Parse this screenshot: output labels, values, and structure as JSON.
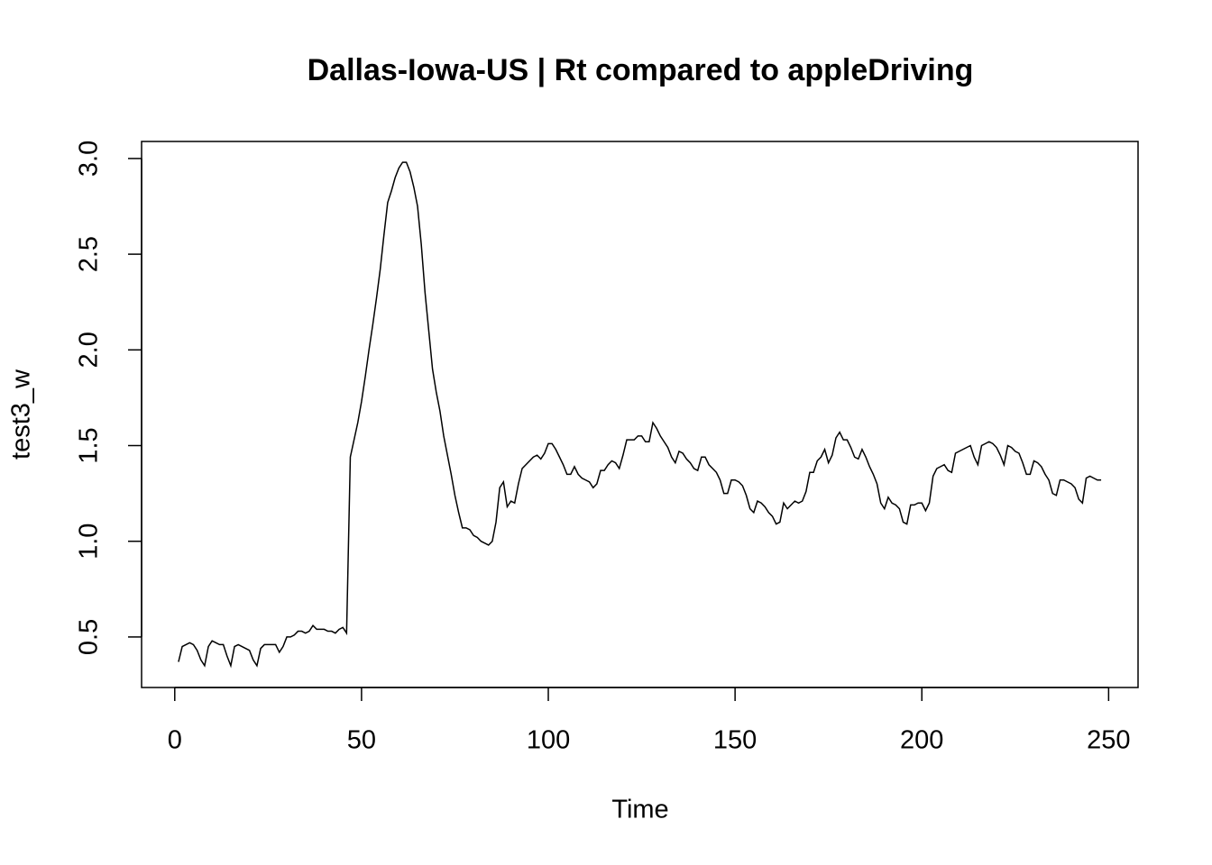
{
  "chart_data": {
    "type": "line",
    "title": "Dallas-Iowa-US | Rt compared to appleDriving",
    "x_label": "Time",
    "y_label": "test3_w",
    "x": [
      1,
      2,
      3,
      4,
      5,
      6,
      7,
      8,
      9,
      10,
      11,
      12,
      13,
      14,
      15,
      16,
      17,
      18,
      19,
      20,
      21,
      22,
      23,
      24,
      25,
      26,
      27,
      28,
      29,
      30,
      31,
      32,
      33,
      34,
      35,
      36,
      37,
      38,
      39,
      40,
      41,
      42,
      43,
      44,
      45,
      46,
      47,
      48,
      49,
      50,
      51,
      52,
      53,
      54,
      55,
      56,
      57,
      58,
      59,
      60,
      61,
      62,
      63,
      64,
      65,
      66,
      67,
      68,
      69,
      70,
      71,
      72,
      73,
      74,
      75,
      76,
      77,
      78,
      79,
      80,
      81,
      82,
      83,
      84,
      85,
      86,
      87,
      88,
      89,
      90,
      91,
      92,
      93,
      94,
      95,
      96,
      97,
      98,
      99,
      100,
      101,
      102,
      103,
      104,
      105,
      106,
      107,
      108,
      109,
      110,
      111,
      112,
      113,
      114,
      115,
      116,
      117,
      118,
      119,
      120,
      121,
      122,
      123,
      124,
      125,
      126,
      127,
      128,
      129,
      130,
      131,
      132,
      133,
      134,
      135,
      136,
      137,
      138,
      139,
      140,
      141,
      142,
      143,
      144,
      145,
      146,
      147,
      148,
      149,
      150,
      151,
      152,
      153,
      154,
      155,
      156,
      157,
      158,
      159,
      160,
      161,
      162,
      163,
      164,
      165,
      166,
      167,
      168,
      169,
      170,
      171,
      172,
      173,
      174,
      175,
      176,
      177,
      178,
      179,
      180,
      181,
      182,
      183,
      184,
      185,
      186,
      187,
      188,
      189,
      190,
      191,
      192,
      193,
      194,
      195,
      196,
      197,
      198,
      199,
      200,
      201,
      202,
      203,
      204,
      205,
      206,
      207,
      208,
      209,
      210,
      211,
      212,
      213,
      214,
      215,
      216,
      217,
      218,
      219,
      220,
      221,
      222,
      223,
      224,
      225,
      226,
      227,
      228,
      229,
      230,
      231,
      232,
      233,
      234,
      235,
      236,
      237,
      238,
      239,
      240,
      241,
      242,
      243,
      244,
      245,
      246,
      247,
      248
    ],
    "series": [
      {
        "color": "#000000",
        "values": [
          0.37,
          0.45,
          0.46,
          0.47,
          0.46,
          0.43,
          0.38,
          0.35,
          0.45,
          0.48,
          0.47,
          0.46,
          0.46,
          0.4,
          0.35,
          0.45,
          0.46,
          0.45,
          0.44,
          0.43,
          0.38,
          0.35,
          0.44,
          0.46,
          0.46,
          0.46,
          0.46,
          0.42,
          0.45,
          0.5,
          0.5,
          0.51,
          0.53,
          0.53,
          0.52,
          0.53,
          0.56,
          0.54,
          0.54,
          0.54,
          0.53,
          0.53,
          0.52,
          0.54,
          0.55,
          0.52,
          1.44,
          1.53,
          1.62,
          1.73,
          1.86,
          2.0,
          2.13,
          2.27,
          2.42,
          2.6,
          2.77,
          2.83,
          2.9,
          2.95,
          2.98,
          2.98,
          2.93,
          2.85,
          2.75,
          2.55,
          2.3,
          2.1,
          1.9,
          1.78,
          1.68,
          1.55,
          1.45,
          1.35,
          1.24,
          1.15,
          1.07,
          1.07,
          1.06,
          1.03,
          1.02,
          1.0,
          0.99,
          0.98,
          1.0,
          1.1,
          1.28,
          1.31,
          1.18,
          1.21,
          1.2,
          1.3,
          1.38,
          1.4,
          1.42,
          1.44,
          1.45,
          1.43,
          1.46,
          1.51,
          1.51,
          1.48,
          1.44,
          1.4,
          1.35,
          1.35,
          1.39,
          1.35,
          1.33,
          1.32,
          1.31,
          1.28,
          1.3,
          1.37,
          1.37,
          1.4,
          1.42,
          1.41,
          1.38,
          1.45,
          1.53,
          1.53,
          1.53,
          1.55,
          1.55,
          1.52,
          1.52,
          1.62,
          1.59,
          1.55,
          1.52,
          1.49,
          1.44,
          1.41,
          1.47,
          1.46,
          1.43,
          1.41,
          1.38,
          1.37,
          1.44,
          1.44,
          1.4,
          1.38,
          1.36,
          1.32,
          1.25,
          1.25,
          1.32,
          1.32,
          1.31,
          1.29,
          1.24,
          1.17,
          1.15,
          1.21,
          1.2,
          1.18,
          1.15,
          1.13,
          1.09,
          1.1,
          1.2,
          1.17,
          1.19,
          1.21,
          1.2,
          1.21,
          1.26,
          1.36,
          1.36,
          1.42,
          1.44,
          1.48,
          1.41,
          1.45,
          1.54,
          1.57,
          1.53,
          1.53,
          1.49,
          1.44,
          1.43,
          1.48,
          1.44,
          1.39,
          1.35,
          1.3,
          1.2,
          1.17,
          1.23,
          1.2,
          1.19,
          1.17,
          1.1,
          1.09,
          1.19,
          1.19,
          1.2,
          1.2,
          1.16,
          1.2,
          1.34,
          1.38,
          1.39,
          1.4,
          1.37,
          1.36,
          1.46,
          1.47,
          1.48,
          1.49,
          1.5,
          1.44,
          1.4,
          1.5,
          1.51,
          1.52,
          1.51,
          1.49,
          1.45,
          1.4,
          1.5,
          1.49,
          1.47,
          1.46,
          1.41,
          1.35,
          1.35,
          1.42,
          1.41,
          1.39,
          1.35,
          1.32,
          1.25,
          1.24,
          1.32,
          1.32,
          1.31,
          1.3,
          1.28,
          1.22,
          1.2,
          1.33,
          1.34,
          1.33,
          1.32,
          1.32
        ]
      }
    ],
    "xlim": [
      -8.88,
      257.88
    ],
    "ylim": [
      0.236,
      3.089
    ],
    "xticks": [
      0,
      50,
      100,
      150,
      200,
      250
    ],
    "yticks": [
      0.5,
      {
        "value": 1,
        "label": "1.0"
      },
      1.5,
      {
        "value": 2,
        "label": "2.0"
      },
      2.5,
      {
        "value": 3,
        "label": "3.0"
      }
    ]
  }
}
